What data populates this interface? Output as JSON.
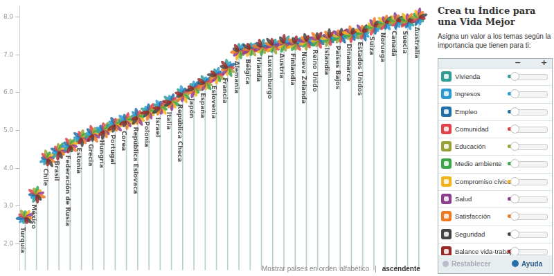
{
  "chart_data": {
    "type": "bar",
    "categories": [
      "Turquía",
      "México",
      "Chile",
      "Brasil",
      "Federación de Rusia",
      "Estonia",
      "Grecia",
      "Hungría",
      "Portugal",
      "Corea",
      "República Eslovaca",
      "Polonia",
      "Israel",
      "Italia",
      "República Checa",
      "Japón",
      "España",
      "Eslovenia",
      "Francia",
      "Alemania",
      "Bélgica",
      "Irlanda",
      "Luxemburgo",
      "Austria",
      "Finlandia",
      "Nueva Zelanda",
      "Reino Unido",
      "Islandia",
      "Países Bajos",
      "Dinamarca",
      "Estados Unidos",
      "Suiza",
      "Noruega",
      "Canadá",
      "Suecia",
      "Australia"
    ],
    "values": [
      2.7,
      3.3,
      4.25,
      4.45,
      4.6,
      4.8,
      4.9,
      5.0,
      5.15,
      5.25,
      5.35,
      5.5,
      5.6,
      5.75,
      5.95,
      6.1,
      6.25,
      6.45,
      6.65,
      7.1,
      7.15,
      7.2,
      7.25,
      7.3,
      7.3,
      7.35,
      7.4,
      7.45,
      7.5,
      7.55,
      7.6,
      7.75,
      7.85,
      7.9,
      7.9,
      8.0
    ],
    "color": "#b9cfd6",
    "ylim": [
      1.3,
      8.3
    ],
    "yticks": [
      {
        "value": 2,
        "label": "2.0"
      },
      {
        "value": 3,
        "label": "3.0"
      },
      {
        "value": 4,
        "label": "4.0"
      },
      {
        "value": 5,
        "label": "5.0"
      },
      {
        "value": 6,
        "label": "6.0"
      },
      {
        "value": 7,
        "label": "7.0"
      },
      {
        "value": 8,
        "label": "8.0"
      }
    ],
    "grid": false,
    "tick_labels": "y"
  },
  "panel": {
    "title": "Crea tu Índice para una Vida Mejor",
    "subtitle": "Asigna un valor a los temas según la importancia que tienen para ti:",
    "controls": [
      "−",
      "+"
    ],
    "topics": [
      {
        "name": "Vivienda",
        "color": "#2f9c95"
      },
      {
        "name": "Ingresos",
        "color": "#2b9bd3"
      },
      {
        "name": "Empleo",
        "color": "#1f6fa8"
      },
      {
        "name": "Comunidad",
        "color": "#e0414a"
      },
      {
        "name": "Educación",
        "color": "#9aa237"
      },
      {
        "name": "Medio ambiente",
        "color": "#3ba54a"
      },
      {
        "name": "Compromiso cívico",
        "color": "#f2b21c"
      },
      {
        "name": "Salud",
        "color": "#8e3e8e"
      },
      {
        "name": "Satisfacción",
        "color": "#ee7a22"
      },
      {
        "name": "Seguridad",
        "color": "#444444"
      },
      {
        "name": "Balance vida-trabajo",
        "color": "#9a2a2a"
      }
    ],
    "reset": "Restablecer",
    "help": "Ayuda"
  },
  "sort": {
    "label": "Mostrar países en orden",
    "options": [
      "alfabético",
      "ascendente"
    ],
    "separator": "|",
    "selected": "ascendente"
  }
}
